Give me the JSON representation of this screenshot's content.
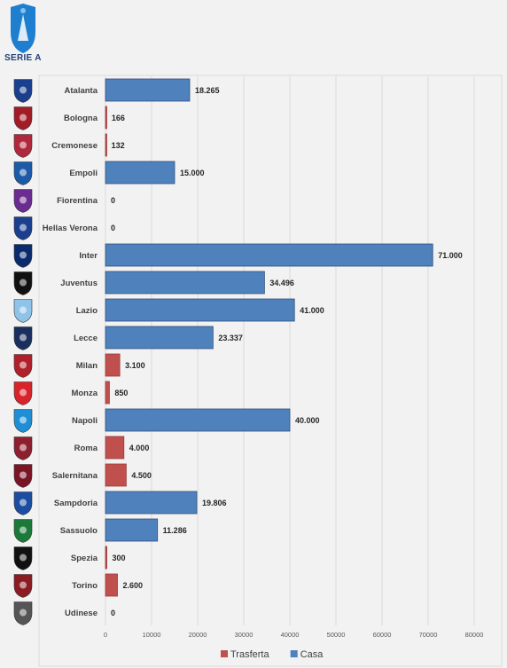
{
  "logo": {
    "text": "SERIE A"
  },
  "colors": {
    "Trasferta": "#c0504d",
    "Casa": "#4f81bd"
  },
  "chart_data": {
    "type": "bar",
    "orientation": "horizontal",
    "categories": [
      "Atalanta",
      "Bologna",
      "Cremonese",
      "Empoli",
      "Fiorentina",
      "Hellas Verona",
      "Inter",
      "Juventus",
      "Lazio",
      "Lecce",
      "Milan",
      "Monza",
      "Napoli",
      "Roma",
      "Salernitana",
      "Sampdoria",
      "Sassuolo",
      "Spezia",
      "Torino",
      "Udinese"
    ],
    "values": [
      18265,
      166,
      132,
      15000,
      0,
      0,
      71000,
      34496,
      41000,
      23337,
      3100,
      850,
      40000,
      4000,
      4500,
      19806,
      11286,
      300,
      2600,
      0
    ],
    "value_labels": [
      "18.265",
      "166",
      "132",
      "15.000",
      "0",
      "0",
      "71.000",
      "34.496",
      "41.000",
      "23.337",
      "3.100",
      "850",
      "40.000",
      "4.000",
      "4.500",
      "19.806",
      "11.286",
      "300",
      "2.600",
      "0"
    ],
    "series_assignment": [
      "Casa",
      "Trasferta",
      "Trasferta",
      "Casa",
      "Trasferta",
      "Casa",
      "Casa",
      "Casa",
      "Casa",
      "Casa",
      "Trasferta",
      "Trasferta",
      "Casa",
      "Trasferta",
      "Trasferta",
      "Casa",
      "Casa",
      "Trasferta",
      "Trasferta",
      "Trasferta"
    ],
    "series": [
      {
        "name": "Trasferta"
      },
      {
        "name": "Casa"
      }
    ],
    "xlim": [
      0,
      80000
    ],
    "xticks": [
      0,
      10000,
      20000,
      30000,
      40000,
      50000,
      60000,
      70000,
      80000
    ],
    "grid": true,
    "legend": "bottom"
  },
  "team_icons": [
    "atalanta-crest",
    "bologna-crest",
    "cremonese-crest",
    "empoli-crest",
    "fiorentina-crest",
    "hellas-verona-crest",
    "inter-crest",
    "juventus-crest",
    "lazio-crest",
    "lecce-crest",
    "milan-crest",
    "monza-crest",
    "napoli-crest",
    "roma-crest",
    "salernitana-crest",
    "sampdoria-crest",
    "sassuolo-crest",
    "spezia-crest",
    "torino-crest",
    "udinese-crest"
  ],
  "team_colors": [
    "#1a3f8f",
    "#a21c26",
    "#b0283c",
    "#1d5aa8",
    "#6a2c91",
    "#1a3f8f",
    "#0a2a6e",
    "#111111",
    "#8fc3e8",
    "#1a2f5e",
    "#b0202a",
    "#d8232a",
    "#1e8fd6",
    "#8e1f2f",
    "#7a1526",
    "#1d4da1",
    "#1b7a3a",
    "#111111",
    "#8a1c22",
    "#555555"
  ]
}
